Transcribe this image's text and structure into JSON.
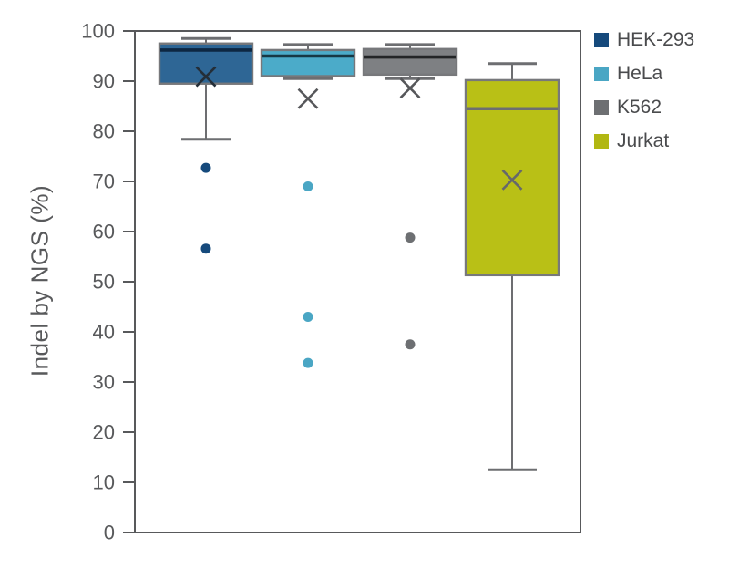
{
  "page": {
    "background": "#ffffff"
  },
  "chart_data": {
    "type": "box",
    "title": "",
    "xlabel": "",
    "ylabel": "Indel by NGS (%)",
    "ylim": [
      0,
      100
    ],
    "yticks": [
      0,
      10,
      20,
      30,
      40,
      50,
      60,
      70,
      80,
      90,
      100
    ],
    "grid": false,
    "frame": true,
    "legend_position": "top-right-outside",
    "axis_color": "#58595b",
    "text_color": "#4a4b4d",
    "box_border_color": "#77787b",
    "whisker_color": "#6d6e71",
    "series": [
      {
        "name": "HEK-293",
        "color": "#164a7c",
        "fill": "#2e6695",
        "median_color": "#0d2742",
        "mean_marker_color": "#242e38",
        "whisker_high": 98.5,
        "q3": 97.5,
        "median": 96.2,
        "q1": 89.5,
        "whisker_low": 78.4,
        "mean": 90.9,
        "outliers": [
          72.7,
          56.6
        ]
      },
      {
        "name": "HeLa",
        "color": "#4aa6c4",
        "fill": "#4babc9",
        "median_color": "#163844",
        "mean_marker_color": "#56575a",
        "whisker_high": 97.3,
        "q3": 96.2,
        "median": 95.0,
        "q1": 91.0,
        "whisker_low": 90.5,
        "mean": 86.5,
        "outliers": [
          69.0,
          43.0,
          33.8
        ]
      },
      {
        "name": "K562",
        "color": "#6d6f72",
        "fill": "#7e8083",
        "median_color": "#232527",
        "mean_marker_color": "#56575a",
        "whisker_high": 97.3,
        "q3": 96.4,
        "median": 94.8,
        "q1": 91.3,
        "whisker_low": 90.5,
        "mean": 88.6,
        "outliers": [
          58.8,
          37.5
        ]
      },
      {
        "name": "Jurkat",
        "color": "#b1b712",
        "fill": "#b9c016",
        "median_color": "#6d6e71",
        "mean_marker_color": "#66686b",
        "whisker_high": 93.5,
        "q3": 90.2,
        "median": 84.5,
        "q1": 51.3,
        "whisker_low": 12.5,
        "mean": 70.3,
        "outliers": []
      }
    ]
  }
}
